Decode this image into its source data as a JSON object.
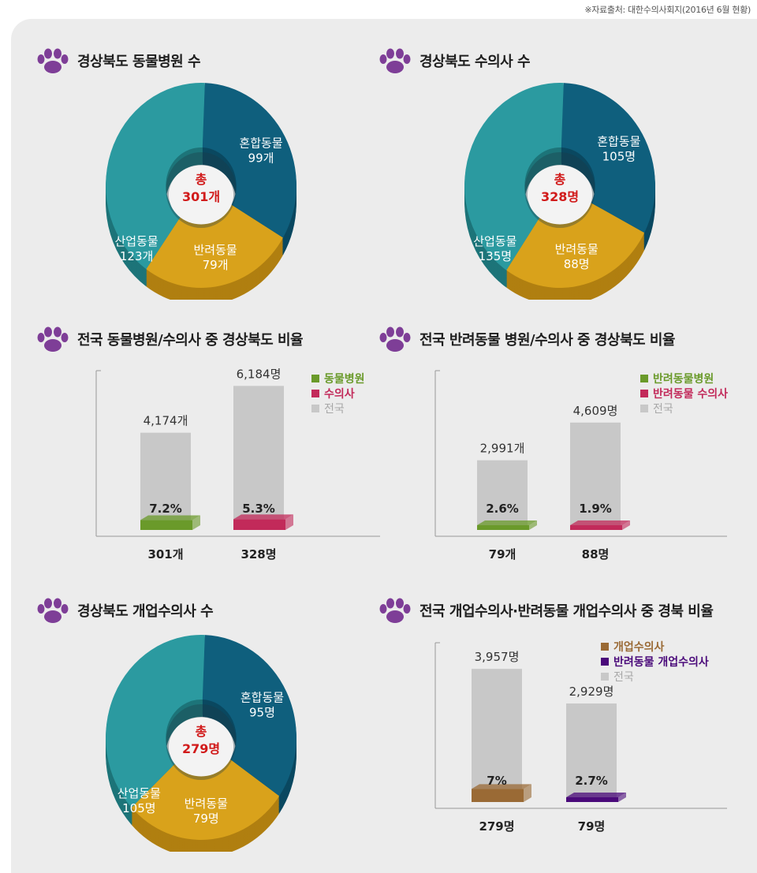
{
  "source": "※자료출처: 대한수의사회지(2016년 6월 현황)",
  "colors": {
    "teal_dark": "#0f5f7d",
    "gold": "#d9a21b",
    "teal": "#2b9aa0",
    "gray": "#c8c8c8",
    "green": "#6a9a2a",
    "crimson": "#c22a5a",
    "brown": "#9a6a35",
    "purple": "#4a0a7a",
    "center_red": "#d11a1a",
    "paw": "#7e3e97"
  },
  "titles": {
    "t1": "경상북도 동물병원 수",
    "t2": "경상북도 수의사 수",
    "t3": "전국 동물병원/수의사 중 경상북도 비율",
    "t4": "전국 반려동물 병원/수의사 중 경상북도 비율",
    "t5": "경상북도 개업수의사 수",
    "t6": "전국 개업수의사·반려동물 개업수의사 중 경북 비율"
  },
  "chart_data": [
    {
      "type": "pie",
      "title": "경상북도 동물병원 수",
      "center": [
        "총",
        "301개"
      ],
      "slices": [
        {
          "name": "혼합동물",
          "value": 99,
          "label": "99개"
        },
        {
          "name": "반려동물",
          "value": 79,
          "label": "79개"
        },
        {
          "name": "산업동물",
          "value": 123,
          "label": "123개"
        }
      ]
    },
    {
      "type": "pie",
      "title": "경상북도 수의사 수",
      "center": [
        "총",
        "328명"
      ],
      "slices": [
        {
          "name": "혼합동물",
          "value": 105,
          "label": "105명"
        },
        {
          "name": "반려동물",
          "value": 88,
          "label": "88명"
        },
        {
          "name": "산업동물",
          "value": 135,
          "label": "135명"
        }
      ]
    },
    {
      "type": "bar",
      "title": "전국 동물병원/수의사 중 경상북도 비율",
      "legend": [
        "동물병원",
        "수의사",
        "전국"
      ],
      "ylim": [
        0,
        6500
      ],
      "bars": [
        {
          "total": 4174,
          "total_label": "4,174개",
          "value": 301,
          "value_label": "301개",
          "pct": "7.2%"
        },
        {
          "total": 6184,
          "total_label": "6,184명",
          "value": 328,
          "value_label": "328명",
          "pct": "5.3%"
        }
      ]
    },
    {
      "type": "bar",
      "title": "전국 반려동물 병원/수의사 중 경상북도 비율",
      "legend": [
        "반려동물병원",
        "반려동물 수의사",
        "전국"
      ],
      "ylim": [
        0,
        6500
      ],
      "bars": [
        {
          "total": 2991,
          "total_label": "2,991개",
          "value": 79,
          "value_label": "79개",
          "pct": "2.6%"
        },
        {
          "total": 4609,
          "total_label": "4,609명",
          "value": 88,
          "value_label": "88명",
          "pct": "1.9%"
        }
      ]
    },
    {
      "type": "pie",
      "title": "경상북도 개업수의사 수",
      "center": [
        "총",
        "279명"
      ],
      "slices": [
        {
          "name": "혼합동물",
          "value": 95,
          "label": "95명"
        },
        {
          "name": "반려동물",
          "value": 79,
          "label": "79명"
        },
        {
          "name": "산업동물",
          "value": 105,
          "label": "105명"
        }
      ]
    },
    {
      "type": "bar",
      "title": "전국 개업수의사·반려동물 개업수의사 중 경북 비율",
      "legend": [
        "개업수의사",
        "반려동물 개업수의사",
        "전국"
      ],
      "ylim": [
        0,
        4500
      ],
      "bars": [
        {
          "total": 3957,
          "total_label": "3,957명",
          "value": 279,
          "value_label": "279명",
          "pct": "7%"
        },
        {
          "total": 2929,
          "total_label": "2,929명",
          "value": 79,
          "value_label": "79명",
          "pct": "2.7%"
        }
      ]
    }
  ]
}
